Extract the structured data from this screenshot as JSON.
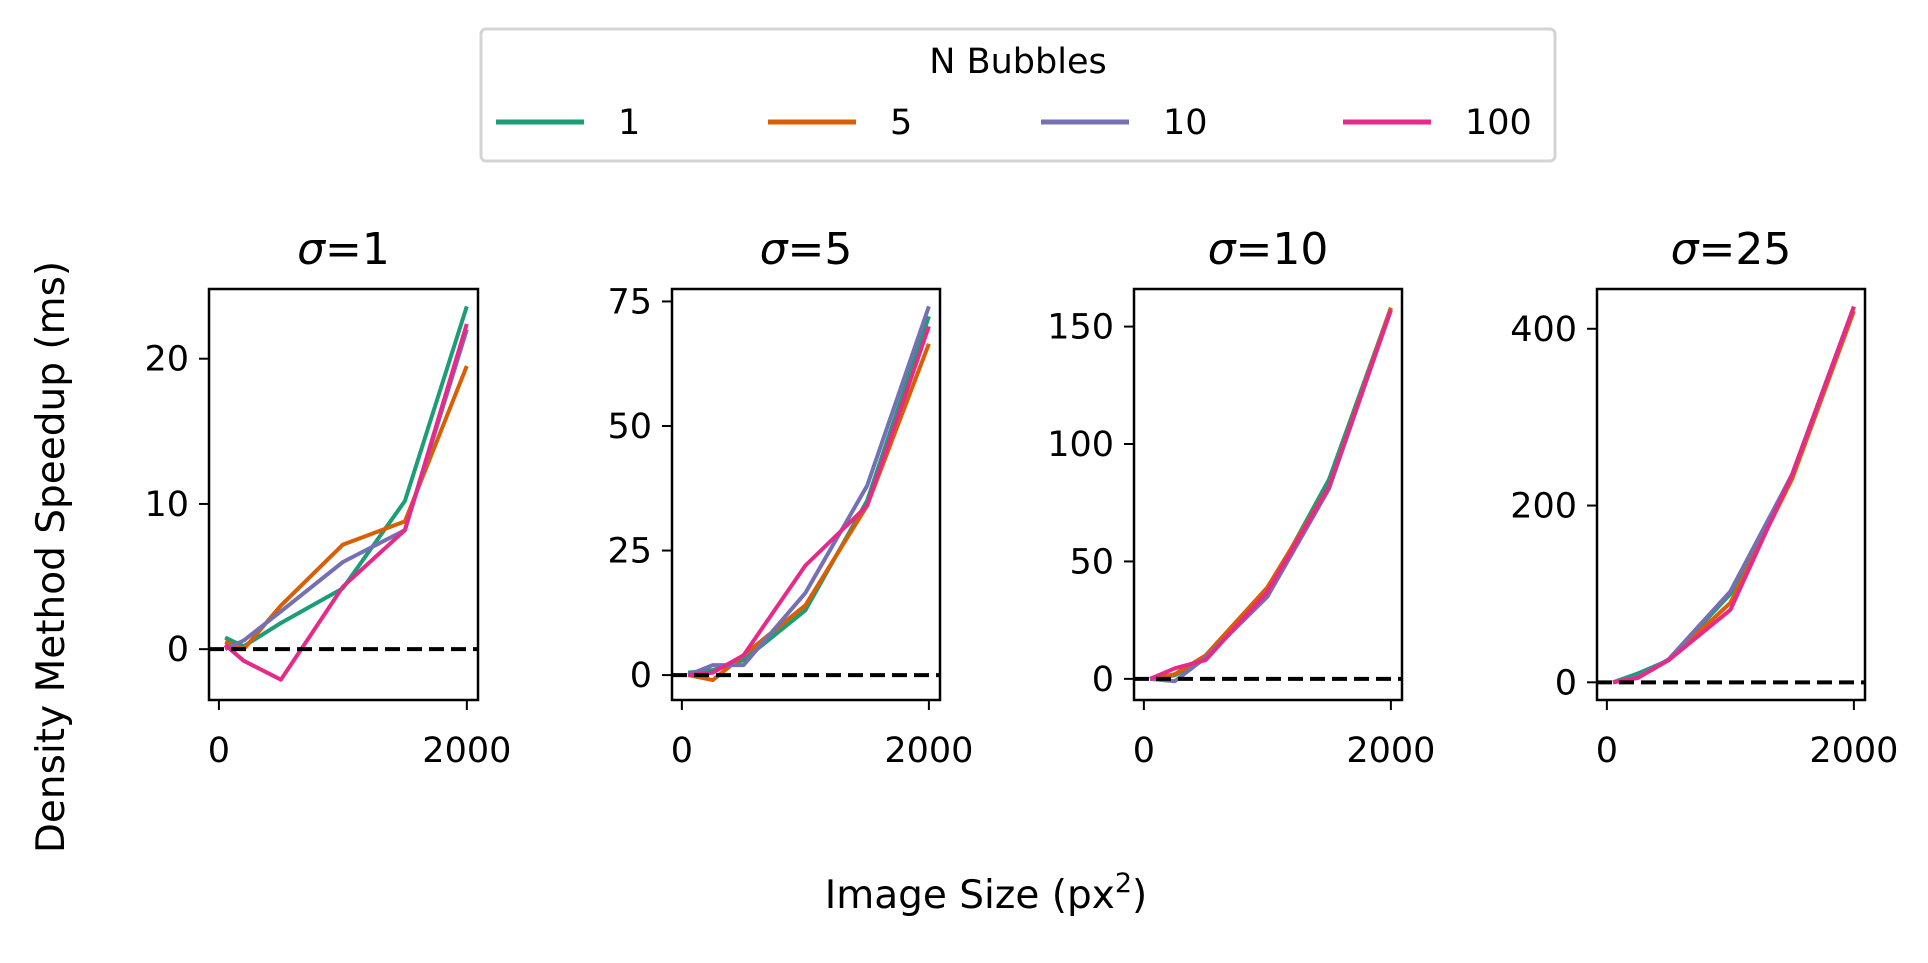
{
  "figure": {
    "xlabel": "Image Size (px",
    "xlabel_sup": "2",
    "xlabel_close": ")",
    "ylabel": "Density Method Speedup (ms)"
  },
  "legend": {
    "title": "N Bubbles",
    "placement": "top-center",
    "entries": [
      {
        "label": "1",
        "color": "#1b9e77"
      },
      {
        "label": "5",
        "color": "#d95f02"
      },
      {
        "label": "10",
        "color": "#7570b3"
      },
      {
        "label": "100",
        "color": "#e7298a"
      }
    ]
  },
  "chart_data": [
    {
      "type": "line",
      "title": "σ=1",
      "x": [
        50,
        200,
        500,
        1000,
        1500,
        2000
      ],
      "xlim": [
        -80,
        2090
      ],
      "ylim": [
        -3.5,
        24.8
      ],
      "xticks": [
        0,
        2000
      ],
      "yticks": [
        0,
        10,
        20
      ],
      "reference_line": {
        "y": 0,
        "style": "dashed",
        "color": "#000000"
      },
      "series": [
        {
          "name": "1",
          "color": "#1b9e77",
          "values": [
            0.8,
            0.2,
            1.8,
            4.2,
            10.2,
            23.6
          ]
        },
        {
          "name": "5",
          "color": "#d95f02",
          "values": [
            0.5,
            0.0,
            3.0,
            7.2,
            8.8,
            19.5
          ]
        },
        {
          "name": "10",
          "color": "#7570b3",
          "values": [
            0.0,
            0.6,
            2.6,
            6.0,
            8.2,
            22.0
          ]
        },
        {
          "name": "100",
          "color": "#e7298a",
          "values": [
            0.3,
            -0.8,
            -2.1,
            4.3,
            8.2,
            22.4
          ]
        }
      ]
    },
    {
      "type": "line",
      "title": "σ=5",
      "x": [
        50,
        250,
        500,
        1000,
        1500,
        2000
      ],
      "xlim": [
        -80,
        2090
      ],
      "ylim": [
        -5,
        77.5
      ],
      "xticks": [
        0,
        2000
      ],
      "yticks": [
        0,
        25,
        50,
        75
      ],
      "reference_line": {
        "y": 0,
        "style": "dashed",
        "color": "#000000"
      },
      "series": [
        {
          "name": "1",
          "color": "#1b9e77",
          "values": [
            0.5,
            1.0,
            3.0,
            13.0,
            35.0,
            72.0
          ]
        },
        {
          "name": "5",
          "color": "#d95f02",
          "values": [
            0.0,
            -1.0,
            4.0,
            14.0,
            34.0,
            66.5
          ]
        },
        {
          "name": "10",
          "color": "#7570b3",
          "values": [
            0.0,
            2.0,
            2.0,
            16.5,
            38.0,
            74.0
          ]
        },
        {
          "name": "100",
          "color": "#e7298a",
          "values": [
            0.0,
            0.5,
            4.0,
            22.0,
            34.0,
            70.0
          ]
        }
      ]
    },
    {
      "type": "line",
      "title": "σ=10",
      "x": [
        50,
        250,
        500,
        1000,
        1500,
        2000
      ],
      "xlim": [
        -80,
        2090
      ],
      "ylim": [
        -9,
        166
      ],
      "xticks": [
        0,
        2000
      ],
      "yticks": [
        0,
        50,
        100,
        150
      ],
      "reference_line": {
        "y": 0,
        "style": "dashed",
        "color": "#000000"
      },
      "series": [
        {
          "name": "1",
          "color": "#1b9e77",
          "values": [
            0.0,
            1.5,
            9.0,
            37.0,
            85.0,
            158.0
          ]
        },
        {
          "name": "5",
          "color": "#d95f02",
          "values": [
            0.0,
            2.0,
            10.0,
            39.0,
            82.0,
            158.0
          ]
        },
        {
          "name": "10",
          "color": "#7570b3",
          "values": [
            0.0,
            -1.0,
            9.0,
            35.0,
            81.0,
            157.0
          ]
        },
        {
          "name": "100",
          "color": "#e7298a",
          "values": [
            0.0,
            4.5,
            8.0,
            37.0,
            82.0,
            157.0
          ]
        }
      ]
    },
    {
      "type": "line",
      "title": "σ=25",
      "x": [
        50,
        250,
        500,
        1000,
        1500,
        2000
      ],
      "xlim": [
        -80,
        2090
      ],
      "ylim": [
        -20,
        445
      ],
      "xticks": [
        0,
        2000
      ],
      "yticks": [
        0,
        200,
        400
      ],
      "reference_line": {
        "y": 0,
        "style": "dashed",
        "color": "#000000"
      },
      "series": [
        {
          "name": "1",
          "color": "#1b9e77",
          "values": [
            0.0,
            10.0,
            25.0,
            100.0,
            235.0,
            425.0
          ]
        },
        {
          "name": "5",
          "color": "#d95f02",
          "values": [
            0.0,
            5.0,
            25.0,
            90.0,
            230.0,
            420.0
          ]
        },
        {
          "name": "10",
          "color": "#7570b3",
          "values": [
            0.0,
            6.0,
            26.0,
            103.0,
            235.0,
            425.0
          ]
        },
        {
          "name": "100",
          "color": "#e7298a",
          "values": [
            0.0,
            5.0,
            25.0,
            82.0,
            235.0,
            425.0
          ]
        }
      ]
    }
  ]
}
